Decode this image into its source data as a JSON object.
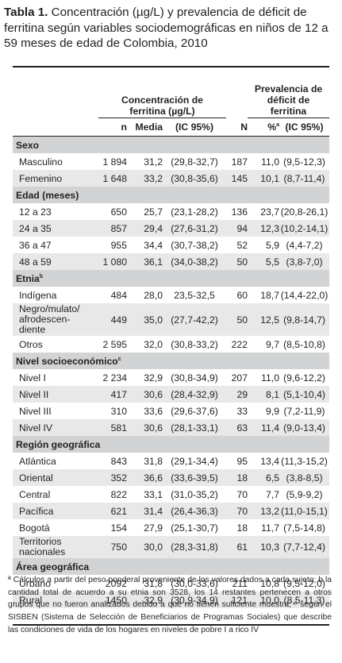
{
  "caption": {
    "label": "Tabla 1.",
    "text": "Concentración (µg/L) y prevalencia de déficit de ferritina según variables sociodemográficas en niños de 12 a 59 meses de edad de Colombia, 2010"
  },
  "header": {
    "group1": "Concentración de ferritina (µg/L)",
    "group2": "Prevalencia de déficit de ferritina",
    "columns": [
      "n",
      "Media",
      "(IC 95%)",
      "N",
      "%",
      "(IC 95%)"
    ],
    "pct_sup": "a"
  },
  "sections": [
    {
      "title": "Sexo",
      "sup": "",
      "rows": [
        [
          "Masculino",
          "1 894",
          "31,2",
          "(29,8-32,7)",
          "187",
          "11,0",
          "(9,5-12,3)"
        ],
        [
          "Femenino",
          "1 648",
          "33,2",
          "(30,8-35,6)",
          "145",
          "10,1",
          "(8,7-11,4)"
        ]
      ]
    },
    {
      "title": "Edad (meses)",
      "sup": "",
      "rows": [
        [
          "12 a 23",
          "650",
          "25,7",
          "(23,1-28,2)",
          "136",
          "23,7",
          "(20,8-26,1)"
        ],
        [
          "24 a 35",
          "857",
          "29,4",
          "(27,6-31,2)",
          "94",
          "12,3",
          "(10,2-14,1)"
        ],
        [
          "36 a 47",
          "955",
          "34,4",
          "(30,7-38,2)",
          "52",
          "5,9",
          "(4,4-7,2)"
        ],
        [
          "48 a 59",
          "1 080",
          "36,1",
          "(34,0-38,2)",
          "50",
          "5,5",
          "(3,8-7,0)"
        ]
      ]
    },
    {
      "title": "Etnia",
      "sup": "b",
      "rows": [
        [
          "Indígena",
          "484",
          "28,0",
          "23,5-32,5",
          "60",
          "18,7",
          "(14,4-22,0)"
        ],
        [
          "Negro/mulato/ afrodescen- diente",
          "449",
          "35,0",
          "(27,7-42,2)",
          "50",
          "12,5",
          "(9,8-14,7)"
        ],
        [
          "Otros",
          "2 595",
          "32,0",
          "(30,8-33,2)",
          "222",
          "9,7",
          "(8,5-10,8)"
        ]
      ]
    },
    {
      "title": "Nivel socioeconómico",
      "sup": "c",
      "rows": [
        [
          "Nivel I",
          "2 234",
          "32,9",
          "(30,8-34,9)",
          "207",
          "11,0",
          "(9,6-12,2)"
        ],
        [
          "Nivel II",
          "417",
          "30,6",
          "(28,4-32,9)",
          "29",
          "8,1",
          "(5,1-10,4)"
        ],
        [
          "Nivel III",
          "310",
          "33,6",
          "(29,6-37,6)",
          "33",
          "9,9",
          "(7,2-11,9)"
        ],
        [
          "Nivel IV",
          "581",
          "30,6",
          "(28,1-33,1)",
          "63",
          "11,4",
          "(9,0-13,4)"
        ]
      ]
    },
    {
      "title": "Región geográfica",
      "sup": "",
      "rows": [
        [
          "Atlántica",
          "843",
          "31,8",
          "(29,1-34,4)",
          "95",
          "13,4",
          "(11,3-15,2)"
        ],
        [
          "Oriental",
          "352",
          "36,6",
          "(33,6-39,5)",
          "18",
          "6,5",
          "(3,8-8,5)"
        ],
        [
          "Central",
          "822",
          "33,1",
          "(31,0-35,2)",
          "70",
          "7,7",
          "(5,9-9,2)"
        ],
        [
          "Pacífica",
          "621",
          "31,4",
          "(26,4-36,3)",
          "70",
          "13,2",
          "(11,0-15,1)"
        ],
        [
          "Bogotá",
          "154",
          "27,9",
          "(25,1-30,7)",
          "18",
          "11,7",
          "(7,5-14,8)"
        ],
        [
          "Territorios nacionales",
          "750",
          "30,0",
          "(28,3-31,8)",
          "61",
          "10,3",
          "(7,7-12,4)"
        ]
      ]
    },
    {
      "title": "Área geográfica",
      "sup": "",
      "rows": [
        [
          "Urbano",
          "2092",
          "31,8",
          "(30,0-33,6)",
          "211",
          "10,8",
          "(9,5-12,0)"
        ],
        [
          "Rural",
          "1450",
          "32,9",
          "(30,9-34,9)",
          "121",
          "10,0",
          "(8,5-11,3)"
        ]
      ]
    }
  ],
  "footnote": "ª Cálculos a partir del peso ponderal proveniente de los valores dados a cada sujeto; b la cantidad total de acuerdo a su etnia son 3528, los 14 restantes pertenecen a otros grupos que no fueron analizados debido a que no tienen suficiente muestra; ᶜ según el SISBEN (Sistema de Selección de Beneficiarios de Programas Sociales) que describe las condiciones de vida de los hogares en niveles de pobre I a rico IV"
}
